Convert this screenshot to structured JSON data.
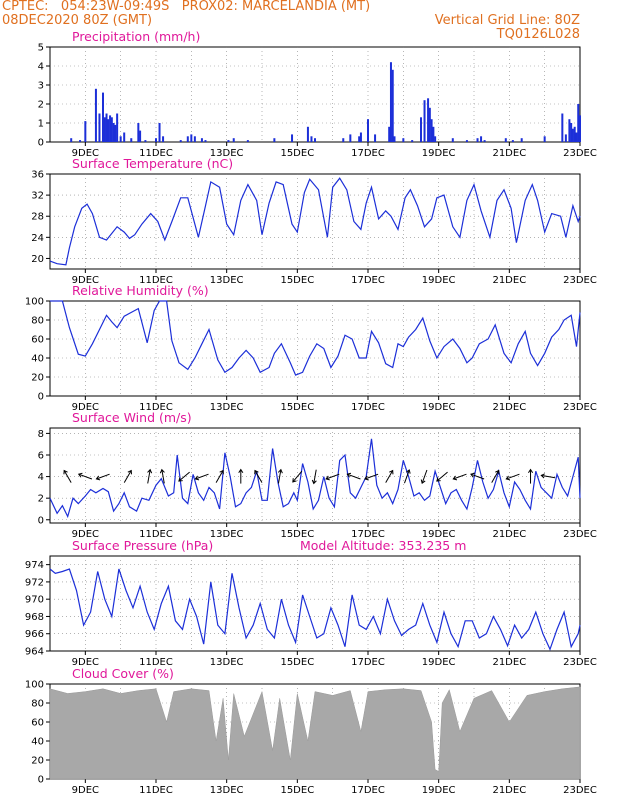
{
  "header": {
    "left_line1": "CPTEC:   054:23W-09:49S   PROX02: MARCELANDIA (MT)",
    "left_line2": "08DEC2020 80Z (GMT)",
    "right_line2": "Vertical Grid Line: 80Z",
    "right_line3": "TQ0126L028"
  },
  "colors": {
    "header": "#e07020",
    "panel_title": "#e0189a",
    "series": "#1c2fd8",
    "cloud_fill": "#a8a8a8",
    "grid": "#888888"
  },
  "x_axis": {
    "start_day": 8,
    "end_day": 23,
    "ticks": [
      "9DEC",
      "11DEC",
      "13DEC",
      "15DEC",
      "17DEC",
      "19DEC",
      "21DEC",
      "23DEC"
    ],
    "tick_days": [
      9,
      11,
      13,
      15,
      17,
      19,
      21,
      23
    ]
  },
  "chart_data": [
    {
      "type": "bar",
      "title": "Precipitation (mm/h)",
      "ylim": [
        0,
        5
      ],
      "yticks": [
        0,
        1,
        2,
        3,
        4,
        5
      ],
      "x_days": [
        8.6,
        8.85,
        9.0,
        9.3,
        9.4,
        9.5,
        9.55,
        9.6,
        9.65,
        9.7,
        9.75,
        9.8,
        9.85,
        9.9,
        10.0,
        10.1,
        10.3,
        10.5,
        10.55,
        10.7,
        11.0,
        11.1,
        11.2,
        11.7,
        11.9,
        12.0,
        12.1,
        12.3,
        12.4,
        13.05,
        13.2,
        13.6,
        14.35,
        14.85,
        15.3,
        15.4,
        15.5,
        16.3,
        16.5,
        16.75,
        16.8,
        17.0,
        17.2,
        17.6,
        17.65,
        17.7,
        17.75,
        18.0,
        18.25,
        18.5,
        18.6,
        18.7,
        18.75,
        18.8,
        18.85,
        18.9,
        19.4,
        19.8,
        20.1,
        20.2,
        20.3,
        20.9,
        21.1,
        21.35,
        22.0,
        22.5,
        22.6,
        22.7,
        22.75,
        22.8,
        22.85,
        22.9,
        22.95,
        23.0
      ],
      "values": [
        0.2,
        0.1,
        1.1,
        2.8,
        1.5,
        2.6,
        1.3,
        1.5,
        1.2,
        1.4,
        1.3,
        1.0,
        0.9,
        1.5,
        0.3,
        0.5,
        0.2,
        1.0,
        0.6,
        0.1,
        0.2,
        1.0,
        0.3,
        0.1,
        0.3,
        0.4,
        0.3,
        0.2,
        0.1,
        0.1,
        0.2,
        0.1,
        0.2,
        0.4,
        0.8,
        0.3,
        0.2,
        0.2,
        0.4,
        0.3,
        0.5,
        1.2,
        0.4,
        0.8,
        4.2,
        3.8,
        0.3,
        0.2,
        0.1,
        1.3,
        2.2,
        2.3,
        1.8,
        1.2,
        0.8,
        0.3,
        0.2,
        0.1,
        0.2,
        0.3,
        0.1,
        0.2,
        0.1,
        0.2,
        0.3,
        1.5,
        0.4,
        1.2,
        1.0,
        0.7,
        0.8,
        0.5,
        2.0,
        1.4
      ]
    },
    {
      "type": "line",
      "title": "Surface Temperature (nC)",
      "ylim": [
        18,
        36
      ],
      "yticks": [
        20,
        24,
        28,
        32,
        36
      ],
      "x_days": [
        8.0,
        8.2,
        8.45,
        8.55,
        8.7,
        8.9,
        9.05,
        9.2,
        9.4,
        9.6,
        9.9,
        10.1,
        10.25,
        10.4,
        10.6,
        10.85,
        11.05,
        11.25,
        11.45,
        11.7,
        11.9,
        12.2,
        12.4,
        12.55,
        12.8,
        13.0,
        13.2,
        13.4,
        13.6,
        13.85,
        14.0,
        14.2,
        14.4,
        14.6,
        14.85,
        15.0,
        15.2,
        15.35,
        15.6,
        15.85,
        16.0,
        16.2,
        16.4,
        16.6,
        16.8,
        16.95,
        17.1,
        17.3,
        17.5,
        17.65,
        17.85,
        18.05,
        18.2,
        18.4,
        18.6,
        18.8,
        18.95,
        19.15,
        19.4,
        19.6,
        19.8,
        20.0,
        20.2,
        20.45,
        20.65,
        20.85,
        21.05,
        21.2,
        21.45,
        21.65,
        21.8,
        22.0,
        22.2,
        22.45,
        22.6,
        22.8,
        22.95,
        23.0
      ],
      "values": [
        19.5,
        19.0,
        18.8,
        22.0,
        26.0,
        29.5,
        30.3,
        28.5,
        24.0,
        23.5,
        26.0,
        25.0,
        23.8,
        24.5,
        26.5,
        28.5,
        27.0,
        23.5,
        27.0,
        31.5,
        31.5,
        24.0,
        30.0,
        34.5,
        33.5,
        26.5,
        24.5,
        31.0,
        34.0,
        31.0,
        24.5,
        30.5,
        34.5,
        34.0,
        26.5,
        25.0,
        32.5,
        35.0,
        33.0,
        24.0,
        33.5,
        35.2,
        33.0,
        27.0,
        25.5,
        30.5,
        33.5,
        27.5,
        29.0,
        28.0,
        25.5,
        31.5,
        33.0,
        30.0,
        26.0,
        27.5,
        31.5,
        32.0,
        26.0,
        24.0,
        31.0,
        34.0,
        29.0,
        24.0,
        31.0,
        33.0,
        29.5,
        23.0,
        31.0,
        34.0,
        31.0,
        25.0,
        28.5,
        28.0,
        24.0,
        30.0,
        27.0,
        28.0
      ],
      "series": [
        {
          "name": "",
          "color": "#1c2fd8"
        }
      ]
    },
    {
      "type": "line",
      "title": "Relative Humidity (%)",
      "ylim": [
        0,
        100
      ],
      "yticks": [
        0,
        20,
        40,
        60,
        80,
        100
      ],
      "x_days": [
        8.0,
        8.35,
        8.55,
        8.8,
        9.0,
        9.2,
        9.4,
        9.6,
        9.75,
        9.9,
        10.1,
        10.3,
        10.5,
        10.75,
        10.95,
        11.1,
        11.3,
        11.45,
        11.65,
        11.9,
        12.1,
        12.3,
        12.5,
        12.75,
        12.95,
        13.15,
        13.35,
        13.55,
        13.75,
        13.95,
        14.2,
        14.35,
        14.55,
        14.8,
        14.95,
        15.15,
        15.35,
        15.55,
        15.75,
        15.95,
        16.15,
        16.35,
        16.55,
        16.75,
        16.95,
        17.1,
        17.3,
        17.5,
        17.7,
        17.85,
        18.0,
        18.15,
        18.35,
        18.55,
        18.75,
        18.95,
        19.15,
        19.4,
        19.6,
        19.8,
        19.95,
        20.15,
        20.4,
        20.6,
        20.85,
        21.05,
        21.25,
        21.45,
        21.6,
        21.8,
        22.0,
        22.2,
        22.4,
        22.55,
        22.75,
        22.9,
        23.0
      ],
      "values": [
        100,
        100,
        72,
        44,
        42,
        55,
        70,
        85,
        78,
        72,
        84,
        88,
        92,
        56,
        90,
        100,
        100,
        58,
        35,
        28,
        40,
        55,
        70,
        38,
        25,
        30,
        40,
        48,
        40,
        25,
        30,
        45,
        55,
        35,
        22,
        25,
        42,
        55,
        50,
        30,
        42,
        64,
        60,
        40,
        40,
        68,
        56,
        34,
        30,
        55,
        52,
        62,
        70,
        82,
        58,
        40,
        52,
        60,
        50,
        35,
        40,
        55,
        60,
        75,
        45,
        35,
        55,
        68,
        45,
        32,
        45,
        62,
        70,
        80,
        85,
        52,
        88
      ]
    },
    {
      "type": "line",
      "title": "Surface Wind (m/s)",
      "ylim": [
        -0.3,
        8.5
      ],
      "yticks": [
        0,
        2,
        4,
        6,
        8
      ],
      "x_days": [
        8.0,
        8.2,
        8.35,
        8.5,
        8.65,
        8.8,
        9.0,
        9.15,
        9.3,
        9.5,
        9.65,
        9.8,
        9.95,
        10.1,
        10.25,
        10.45,
        10.6,
        10.8,
        11.0,
        11.15,
        11.35,
        11.5,
        11.6,
        11.75,
        11.9,
        12.05,
        12.2,
        12.35,
        12.5,
        12.65,
        12.8,
        12.95,
        13.1,
        13.25,
        13.4,
        13.55,
        13.7,
        13.85,
        14.0,
        14.15,
        14.3,
        14.45,
        14.6,
        14.75,
        14.9,
        15.0,
        15.15,
        15.3,
        15.45,
        15.6,
        15.75,
        15.9,
        16.05,
        16.2,
        16.35,
        16.5,
        16.65,
        16.8,
        16.95,
        17.1,
        17.25,
        17.4,
        17.55,
        17.7,
        17.85,
        18.0,
        18.15,
        18.3,
        18.45,
        18.6,
        18.75,
        18.9,
        19.05,
        19.2,
        19.35,
        19.5,
        19.65,
        19.8,
        19.95,
        20.1,
        20.25,
        20.4,
        20.55,
        20.7,
        20.85,
        21.0,
        21.15,
        21.3,
        21.45,
        21.6,
        21.75,
        21.9,
        22.05,
        22.2,
        22.35,
        22.5,
        22.65,
        22.8,
        22.95,
        23.0
      ],
      "values": [
        2.0,
        0.6,
        1.3,
        0.3,
        2.0,
        1.5,
        2.2,
        2.8,
        2.5,
        2.9,
        2.6,
        0.8,
        1.5,
        2.5,
        1.2,
        0.8,
        2.0,
        1.8,
        3.2,
        3.8,
        2.2,
        2.5,
        6.0,
        2.0,
        1.5,
        4.2,
        2.5,
        1.8,
        3.0,
        2.5,
        1.0,
        6.2,
        4.0,
        1.2,
        1.5,
        2.5,
        3.0,
        4.5,
        1.8,
        1.8,
        6.6,
        3.5,
        1.2,
        1.5,
        2.5,
        1.8,
        5.2,
        3.5,
        1.0,
        1.8,
        4.0,
        2.0,
        1.2,
        5.5,
        6.0,
        2.5,
        2.0,
        3.0,
        4.0,
        7.5,
        3.2,
        2.0,
        2.5,
        1.5,
        2.8,
        5.5,
        4.0,
        2.2,
        2.5,
        1.8,
        2.2,
        4.5,
        3.0,
        1.5,
        2.5,
        2.8,
        1.8,
        1.0,
        3.0,
        5.5,
        3.5,
        2.0,
        2.8,
        4.5,
        2.5,
        1.2,
        3.5,
        2.8,
        1.8,
        1.0,
        4.5,
        3.0,
        2.5,
        2.0,
        4.2,
        3.0,
        2.2,
        4.0,
        5.8,
        2.0
      ],
      "arrow_days": [
        8.5,
        9.0,
        9.5,
        10.2,
        10.8,
        11.2,
        11.8,
        12.3,
        12.8,
        13.4,
        13.9,
        14.5,
        15.0,
        15.5,
        16.0,
        16.6,
        17.1,
        17.6,
        18.1,
        18.6,
        19.1,
        19.6,
        20.1,
        20.6,
        21.1,
        21.6,
        22.1
      ],
      "arrow_dirs_deg": [
        120,
        160,
        200,
        60,
        80,
        100,
        220,
        200,
        60,
        90,
        120,
        80,
        230,
        260,
        200,
        160,
        200,
        60,
        70,
        250,
        220,
        200,
        160,
        60,
        200,
        90,
        170
      ]
    },
    {
      "type": "line",
      "title": "Surface Pressure (hPa)",
      "annotation": "Model Altitude: 353.235 m",
      "ylim": [
        964,
        975
      ],
      "yticks": [
        964,
        966,
        968,
        970,
        972,
        974
      ],
      "x_days": [
        8.0,
        8.15,
        8.35,
        8.55,
        8.75,
        8.95,
        9.15,
        9.35,
        9.55,
        9.75,
        9.95,
        10.15,
        10.35,
        10.55,
        10.75,
        10.95,
        11.15,
        11.35,
        11.55,
        11.75,
        11.95,
        12.15,
        12.35,
        12.55,
        12.75,
        12.95,
        13.15,
        13.35,
        13.55,
        13.75,
        13.95,
        14.15,
        14.35,
        14.55,
        14.75,
        14.95,
        15.15,
        15.35,
        15.55,
        15.75,
        15.95,
        16.15,
        16.35,
        16.55,
        16.75,
        16.95,
        17.15,
        17.35,
        17.55,
        17.75,
        17.95,
        18.15,
        18.35,
        18.55,
        18.75,
        18.95,
        19.15,
        19.35,
        19.55,
        19.75,
        19.95,
        20.15,
        20.35,
        20.55,
        20.75,
        20.95,
        21.15,
        21.35,
        21.55,
        21.75,
        21.95,
        22.15,
        22.35,
        22.55,
        22.75,
        22.95,
        23.0
      ],
      "values": [
        973.5,
        973.0,
        973.2,
        973.5,
        971.0,
        967.0,
        968.5,
        973.2,
        970.0,
        968.0,
        973.5,
        971.0,
        969.0,
        971.5,
        968.5,
        966.5,
        969.5,
        971.5,
        967.5,
        966.5,
        970.0,
        968.0,
        964.8,
        972.0,
        967.0,
        966.0,
        973.0,
        969.0,
        965.5,
        967.0,
        969.5,
        966.5,
        965.5,
        970.0,
        967.0,
        965.0,
        970.5,
        968.0,
        965.5,
        966.0,
        969.0,
        967.0,
        964.5,
        970.5,
        967.0,
        966.5,
        968.0,
        966.0,
        970.0,
        967.5,
        965.8,
        966.5,
        967.0,
        969.5,
        967.0,
        965.0,
        968.5,
        966.0,
        964.5,
        967.5,
        967.5,
        965.5,
        966.0,
        968.0,
        966.5,
        964.6,
        967.0,
        965.5,
        966.5,
        968.5,
        966.0,
        964.2,
        966.5,
        968.5,
        964.5,
        966.0,
        967.0
      ]
    },
    {
      "type": "area",
      "title": "Cloud Cover (%)",
      "ylim": [
        0,
        100
      ],
      "yticks": [
        0,
        20,
        40,
        60,
        80,
        100
      ],
      "x_days": [
        8.0,
        8.5,
        9.0,
        9.5,
        10.0,
        10.5,
        11.0,
        11.3,
        11.5,
        12.0,
        12.5,
        12.7,
        12.9,
        13.05,
        13.2,
        13.5,
        14.0,
        14.3,
        14.5,
        14.8,
        15.0,
        15.3,
        15.5,
        16.0,
        16.5,
        16.8,
        17.0,
        17.5,
        18.0,
        18.5,
        18.8,
        18.9,
        19.0,
        19.1,
        19.3,
        19.6,
        20.0,
        20.5,
        21.0,
        21.5,
        22.0,
        22.5,
        23.0
      ],
      "values": [
        95,
        90,
        92,
        95,
        90,
        93,
        95,
        60,
        92,
        95,
        93,
        40,
        85,
        20,
        90,
        45,
        92,
        30,
        85,
        20,
        90,
        40,
        92,
        88,
        93,
        50,
        92,
        94,
        95,
        93,
        60,
        10,
        8,
        80,
        94,
        50,
        85,
        93,
        60,
        88,
        92,
        95,
        97
      ]
    }
  ]
}
